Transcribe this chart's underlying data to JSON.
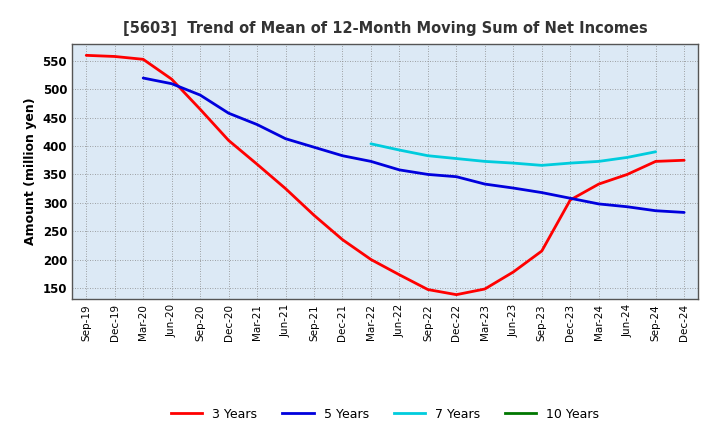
{
  "title": "[5603]  Trend of Mean of 12-Month Moving Sum of Net Incomes",
  "ylabel": "Amount (million yen)",
  "plot_bg_color": "#dce9f5",
  "fig_bg_color": "#ffffff",
  "grid_color": "#888888",
  "ylim": [
    130,
    580
  ],
  "yticks": [
    150,
    200,
    250,
    300,
    350,
    400,
    450,
    500,
    550
  ],
  "x_labels": [
    "Sep-19",
    "Dec-19",
    "Mar-20",
    "Jun-20",
    "Sep-20",
    "Dec-20",
    "Mar-21",
    "Jun-21",
    "Sep-21",
    "Dec-21",
    "Mar-22",
    "Jun-22",
    "Sep-22",
    "Dec-22",
    "Mar-23",
    "Jun-23",
    "Sep-23",
    "Dec-23",
    "Mar-24",
    "Jun-24",
    "Sep-24",
    "Dec-24"
  ],
  "series": {
    "3 Years": {
      "color": "#ff0000",
      "linewidth": 2.0,
      "values": [
        560,
        558,
        553,
        518,
        465,
        410,
        368,
        325,
        278,
        235,
        200,
        173,
        147,
        138,
        148,
        178,
        215,
        305,
        333,
        350,
        373,
        375
      ]
    },
    "5 Years": {
      "color": "#0000dd",
      "linewidth": 2.0,
      "values": [
        null,
        null,
        520,
        510,
        490,
        458,
        438,
        413,
        398,
        383,
        373,
        358,
        350,
        346,
        333,
        326,
        318,
        308,
        298,
        293,
        286,
        283
      ]
    },
    "7 Years": {
      "color": "#00ccdd",
      "linewidth": 2.0,
      "values": [
        null,
        null,
        null,
        null,
        null,
        null,
        null,
        null,
        null,
        null,
        404,
        393,
        383,
        378,
        373,
        370,
        366,
        370,
        373,
        380,
        390,
        null
      ]
    },
    "10 Years": {
      "color": "#007700",
      "linewidth": 2.0,
      "values": [
        null,
        null,
        null,
        null,
        null,
        null,
        null,
        null,
        null,
        null,
        null,
        null,
        null,
        null,
        null,
        null,
        null,
        null,
        null,
        null,
        null,
        null
      ]
    }
  },
  "legend_order": [
    "3 Years",
    "5 Years",
    "7 Years",
    "10 Years"
  ],
  "legend_colors": [
    "#ff0000",
    "#0000dd",
    "#00ccdd",
    "#007700"
  ]
}
